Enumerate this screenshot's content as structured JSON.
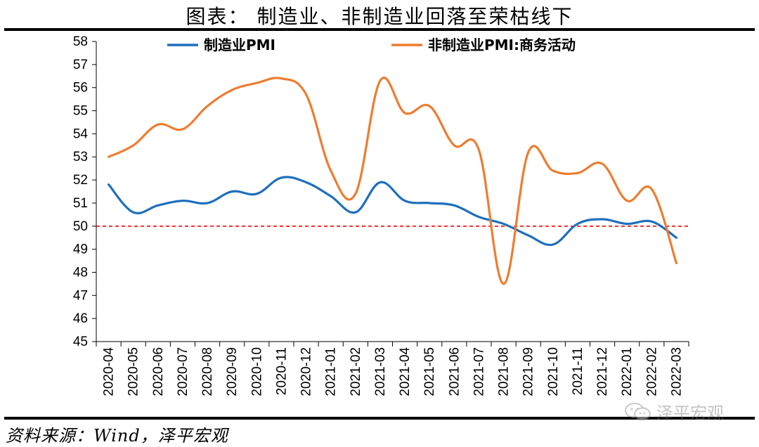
{
  "title": "图表：  制造业、非制造业回落至荣枯线下",
  "source": "资料来源：Wind，泽平宏观",
  "watermark": "泽平宏观",
  "watermark_icon": "wechat-icon",
  "chart_data": {
    "type": "line",
    "title": "",
    "xlabel": "",
    "ylabel": "",
    "ylim": [
      45,
      58
    ],
    "yticks": [
      45,
      46,
      47,
      48,
      49,
      50,
      51,
      52,
      53,
      54,
      55,
      56,
      57,
      58
    ],
    "grid": false,
    "legend_position": "top",
    "categories": [
      "2020-04",
      "2020-05",
      "2020-06",
      "2020-07",
      "2020-08",
      "2020-09",
      "2020-10",
      "2020-11",
      "2020-12",
      "2021-01",
      "2021-02",
      "2021-03",
      "2021-04",
      "2021-05",
      "2021-06",
      "2021-07",
      "2021-08",
      "2021-09",
      "2021-10",
      "2021-11",
      "2021-12",
      "2022-01",
      "2022-02",
      "2022-03"
    ],
    "series": [
      {
        "name": "制造业PMI",
        "color": "#1f6fbd",
        "values": [
          51.8,
          50.6,
          50.9,
          51.1,
          51.0,
          51.5,
          51.4,
          52.1,
          51.9,
          51.3,
          50.6,
          51.9,
          51.1,
          51.0,
          50.9,
          50.4,
          50.1,
          49.6,
          49.2,
          50.1,
          50.3,
          50.1,
          50.2,
          49.5
        ]
      },
      {
        "name": "非制造业PMI:商务活动",
        "color": "#ed7d31",
        "values": [
          53.0,
          53.5,
          54.4,
          54.2,
          55.2,
          55.9,
          56.2,
          56.4,
          55.7,
          52.4,
          51.4,
          56.3,
          54.9,
          55.2,
          53.5,
          53.3,
          47.5,
          53.2,
          52.4,
          52.3,
          52.7,
          51.1,
          51.6,
          48.4
        ]
      }
    ],
    "reference_line": {
      "value": 50,
      "color": "#ff0000",
      "style": "dashed"
    }
  }
}
